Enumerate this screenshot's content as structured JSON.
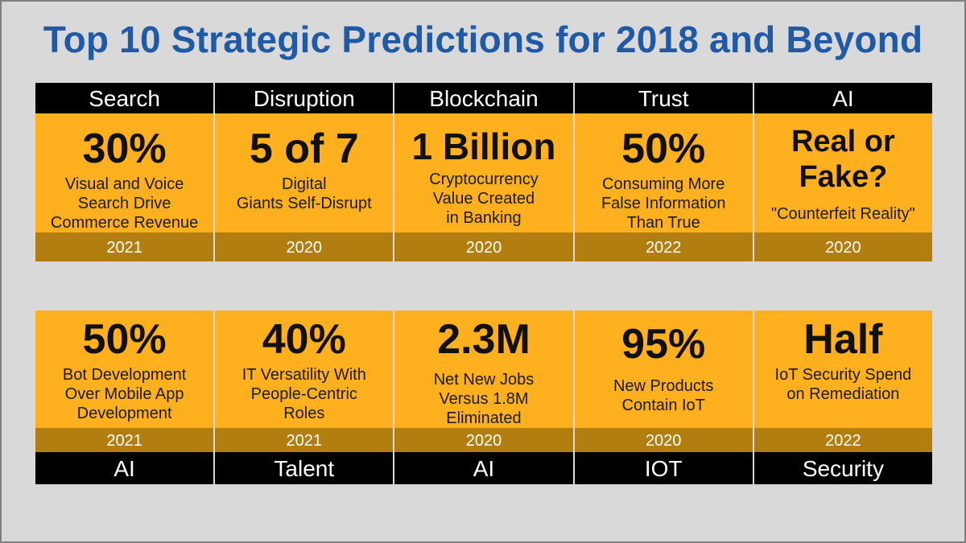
{
  "title": "Top 10 Strategic Predictions for 2018 and Beyond",
  "top": [
    {
      "category": "Search",
      "headline": "30%",
      "description": "Visual and Voice\nSearch Drive\nCommerce Revenue",
      "year": "2021"
    },
    {
      "category": "Disruption",
      "headline": "5 of 7",
      "description": "Digital\nGiants Self-Disrupt",
      "year": "2020"
    },
    {
      "category": "Blockchain",
      "headline": "1 Billion",
      "description": "Cryptocurrency\nValue Created\nin Banking",
      "year": "2020"
    },
    {
      "category": "Trust",
      "headline": "50%",
      "description": "Consuming More\nFalse Information\nThan True",
      "year": "2022"
    },
    {
      "category": "AI",
      "headline": "Real or\nFake?",
      "description": "\"Counterfeit Reality\"",
      "year": "2020"
    }
  ],
  "bottom": [
    {
      "headline": "50%",
      "description": "Bot Development\nOver Mobile App\nDevelopment",
      "year": "2021",
      "category": "AI"
    },
    {
      "headline": "40%",
      "description": "IT Versatility With\nPeople-Centric\nRoles",
      "year": "2021",
      "category": "Talent"
    },
    {
      "headline": "2.3M",
      "description": "Net New Jobs\nVersus 1.8M\nEliminated",
      "year": "2020",
      "category": "AI"
    },
    {
      "headline": "95%",
      "description": "New Products\nContain IoT",
      "year": "2020",
      "category": "IOT"
    },
    {
      "headline": "Half",
      "description": "IoT Security Spend\non Remediation",
      "year": "2022",
      "category": "Security"
    }
  ]
}
